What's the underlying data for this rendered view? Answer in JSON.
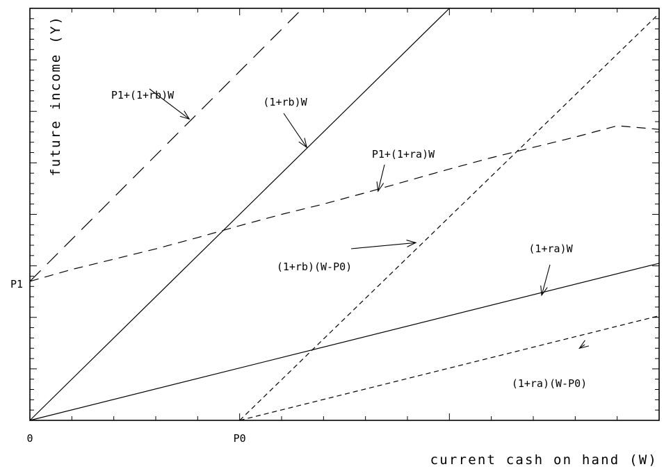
{
  "chart_data": {
    "type": "line",
    "title": "",
    "xlabel": "current cash on hand (W)",
    "ylabel": "future income (Y)",
    "xlim": [
      0,
      15
    ],
    "ylim": [
      0,
      8
    ],
    "grid": false,
    "x_ticks": [
      {
        "x": 0,
        "label": "0"
      },
      {
        "x": 5,
        "label": "P0"
      }
    ],
    "y_ticks": [
      {
        "y": 2.7,
        "label": "P1"
      }
    ],
    "series": [
      {
        "name": "(1+rb)W",
        "style": "solid",
        "points": [
          [
            0,
            0
          ],
          [
            10,
            8
          ]
        ]
      },
      {
        "name": "(1+ra)W",
        "style": "solid",
        "points": [
          [
            0,
            0
          ],
          [
            15,
            3.05
          ]
        ]
      },
      {
        "name": "P1+(1+rb)W",
        "style": "long-dash",
        "points": [
          [
            0,
            2.7
          ],
          [
            6.5,
            8
          ]
        ]
      },
      {
        "name": "P1+(1+ra)W",
        "style": "medium-dash",
        "points": [
          [
            0,
            2.7
          ],
          [
            1,
            2.93
          ],
          [
            2,
            3.13
          ],
          [
            3,
            3.33
          ],
          [
            4,
            3.55
          ],
          [
            5,
            3.78
          ],
          [
            6,
            4.0
          ],
          [
            7,
            4.2
          ],
          [
            8,
            4.42
          ],
          [
            9,
            4.65
          ],
          [
            10,
            4.88
          ],
          [
            11,
            5.1
          ],
          [
            12,
            5.3
          ],
          [
            13,
            5.5
          ],
          [
            14,
            5.72
          ],
          [
            15,
            5.65
          ]
        ]
      },
      {
        "name": "(1+rb)(W-P0)",
        "style": "short-dash",
        "points": [
          [
            5,
            0
          ],
          [
            15,
            7.9
          ]
        ]
      },
      {
        "name": "(1+ra)(W-P0)",
        "style": "short-dash",
        "points": [
          [
            5,
            0
          ],
          [
            15,
            2.03
          ]
        ]
      }
    ],
    "annotations": [
      {
        "text": "P1+(1+rb)W",
        "arrow_to": [
          3.8,
          5.85
        ]
      },
      {
        "text": "(1+rb)W",
        "arrow_to": [
          6.6,
          5.3
        ]
      },
      {
        "text": "P1+(1+ra)W",
        "arrow_to": [
          8.3,
          4.45
        ]
      },
      {
        "text": "(1+rb)(W-P0)",
        "arrow_to": [
          9.2,
          3.45
        ]
      },
      {
        "text": "(1+ra)W",
        "arrow_to": [
          12.2,
          2.43
        ]
      },
      {
        "text": "(1+ra)(W-P0)",
        "arrow_to": [
          13.1,
          1.4
        ]
      }
    ]
  }
}
